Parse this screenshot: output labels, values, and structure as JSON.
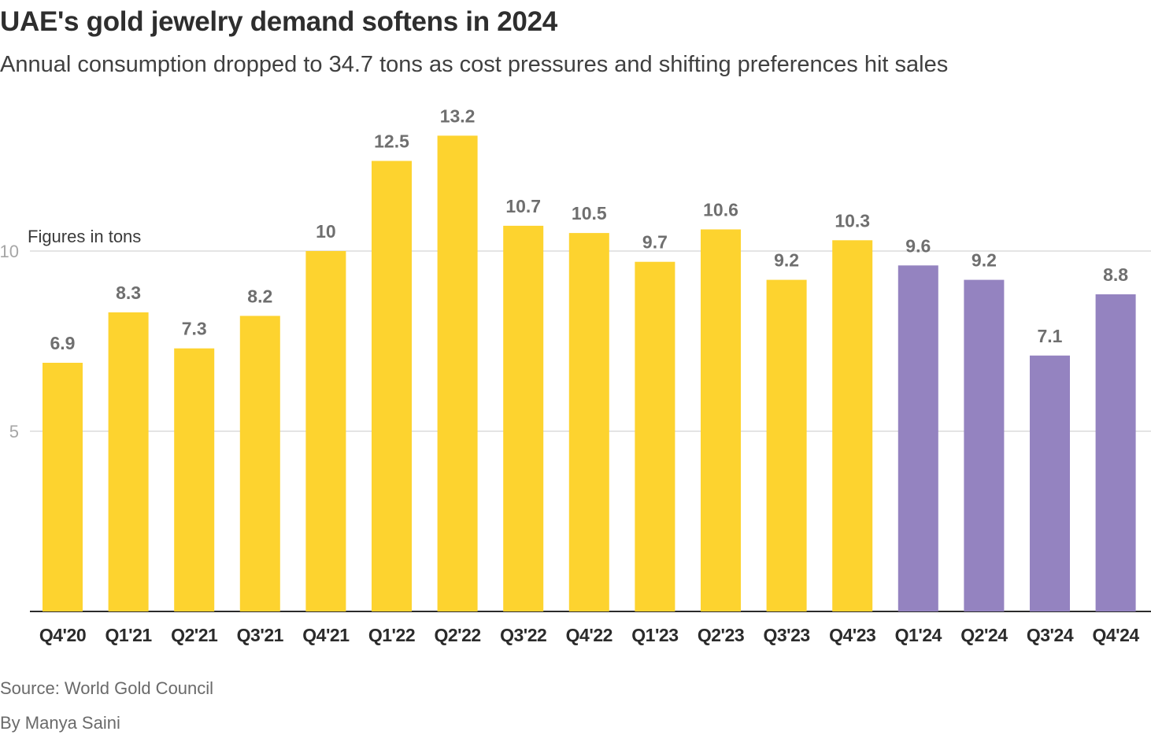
{
  "title": "UAE's gold jewelry demand softens in 2024",
  "subtitle": "Annual consumption dropped to 34.7 tons as cost pressures and shifting preferences hit sales",
  "source": "Source: World Gold Council",
  "byline": "By Manya Saini",
  "colors": {
    "yellow": "#fdd32f",
    "purple": "#9483c0",
    "value_label": "#6f6f6f",
    "tick_label": "#a6a6a6",
    "gridline": "#c8c8c8",
    "axis": "#2b2b2b",
    "category_label": "#2b2b2b"
  },
  "chart_data": {
    "type": "bar",
    "title": "UAE's gold jewelry demand softens in 2024",
    "annotation": "Figures in tons",
    "categories": [
      "Q4'20",
      "Q1'21",
      "Q2'21",
      "Q3'21",
      "Q4'21",
      "Q1'22",
      "Q2'22",
      "Q3'22",
      "Q4'22",
      "Q1'23",
      "Q2'23",
      "Q3'23",
      "Q4'23",
      "Q1'24",
      "Q2'24",
      "Q3'24",
      "Q4'24"
    ],
    "values": [
      6.9,
      8.3,
      7.3,
      8.2,
      10,
      12.5,
      13.2,
      10.7,
      10.5,
      9.7,
      10.6,
      9.2,
      10.3,
      9.6,
      9.2,
      7.1,
      8.8
    ],
    "value_labels": [
      "6.9",
      "8.3",
      "7.3",
      "8.2",
      "10",
      "12.5",
      "13.2",
      "10.7",
      "10.5",
      "9.7",
      "10.6",
      "9.2",
      "10.3",
      "9.6",
      "9.2",
      "7.1",
      "8.8"
    ],
    "highlight": [
      "",
      "",
      "",
      "",
      "",
      "",
      "",
      "",
      "",
      "",
      "",
      "",
      "",
      "2024",
      "2024",
      "2024",
      "2024"
    ],
    "yticks": [
      5,
      10
    ],
    "ytick_labels": [
      "5",
      "10"
    ],
    "ylim": [
      0,
      14.5
    ],
    "xlabel": "",
    "ylabel": "",
    "grid": true
  }
}
